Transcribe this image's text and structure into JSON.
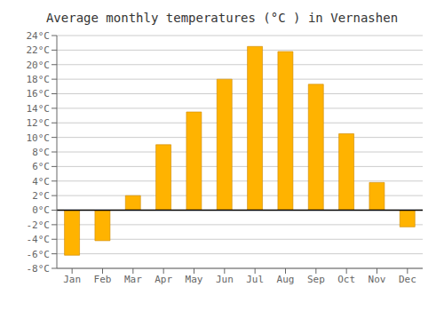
{
  "chart_data": {
    "type": "bar",
    "title": "Average monthly temperatures (°C ) in Vernashen",
    "categories": [
      "Jan",
      "Feb",
      "Mar",
      "Apr",
      "May",
      "Jun",
      "Jul",
      "Aug",
      "Sep",
      "Oct",
      "Nov",
      "Dec"
    ],
    "values": [
      -6.2,
      -4.2,
      2.0,
      9.0,
      13.5,
      18.0,
      22.5,
      21.8,
      17.3,
      10.5,
      3.8,
      -2.3
    ],
    "color": "#FFB300",
    "ylim": [
      -8,
      24
    ],
    "yticks": [
      {
        "value": -8,
        "label": "-8°C"
      },
      {
        "value": -6,
        "label": "-6°C"
      },
      {
        "value": -4,
        "label": "-4°C"
      },
      {
        "value": -2,
        "label": "-2°C"
      },
      {
        "value": 0,
        "label": "0°C"
      },
      {
        "value": 2,
        "label": "2°C"
      },
      {
        "value": 4,
        "label": "4°C"
      },
      {
        "value": 6,
        "label": "6°C"
      },
      {
        "value": 8,
        "label": "8°C"
      },
      {
        "value": 10,
        "label": "10°C"
      },
      {
        "value": 12,
        "label": "12°C"
      },
      {
        "value": 14,
        "label": "14°C"
      },
      {
        "value": 16,
        "label": "16°C"
      },
      {
        "value": 18,
        "label": "18°C"
      },
      {
        "value": 20,
        "label": "20°C"
      },
      {
        "value": 22,
        "label": "22°C"
      },
      {
        "value": 24,
        "label": "24°C"
      }
    ],
    "grid": true
  }
}
